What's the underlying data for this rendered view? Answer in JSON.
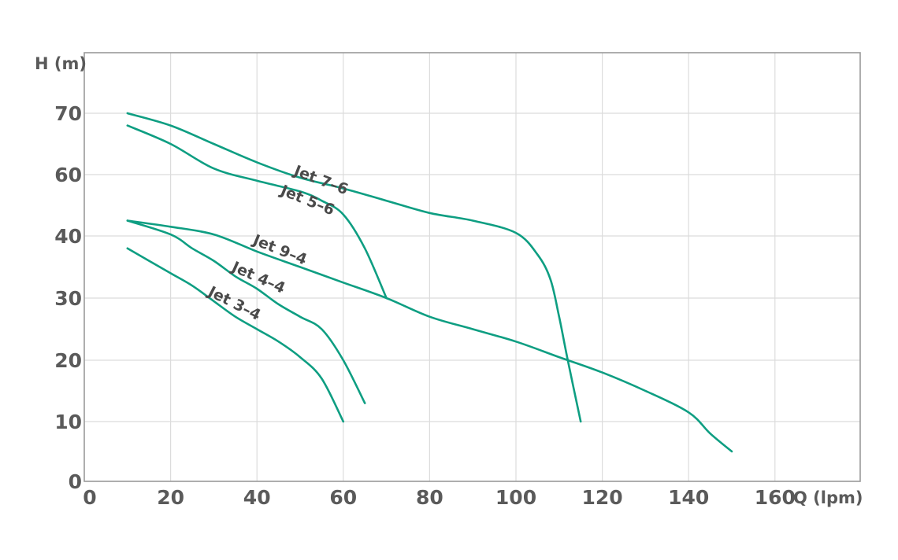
{
  "chart_data": {
    "type": "line",
    "xlabel": "Q (lpm)",
    "ylabel": "H (m)",
    "xlim": [
      0,
      180
    ],
    "ylim": [
      0,
      80
    ],
    "x_ticks": [
      0,
      20,
      40,
      60,
      80,
      100,
      120,
      140,
      160
    ],
    "y_ticks": [
      0,
      10,
      20,
      30,
      40,
      60,
      70
    ],
    "grid": true,
    "line_color": "#0e9e82",
    "series": [
      {
        "name": "Jet 7-6",
        "x": [
          10,
          20,
          30,
          40,
          50,
          60,
          70,
          80,
          90,
          100,
          105,
          108,
          110,
          112,
          115
        ],
        "y": [
          70,
          68,
          65,
          62,
          59,
          55.5,
          51.5,
          47.5,
          45,
          41,
          37,
          33,
          27,
          20,
          10
        ]
      },
      {
        "name": "Jet 5-6",
        "x": [
          10,
          20,
          30,
          40,
          50,
          55,
          60,
          65,
          70
        ],
        "y": [
          68,
          65,
          61,
          58,
          54.5,
          51.5,
          47,
          38,
          30
        ]
      },
      {
        "name": "Jet 9-4",
        "x": [
          10,
          20,
          30,
          40,
          50,
          60,
          70,
          80,
          90,
          100,
          110,
          120,
          130,
          140,
          145,
          150
        ],
        "y": [
          45,
          43,
          40.5,
          37.5,
          35,
          32.5,
          30,
          27,
          25,
          23,
          20.5,
          18,
          15,
          11.5,
          8,
          5
        ]
      },
      {
        "name": "Jet 4-4",
        "x": [
          10,
          20,
          25,
          30,
          35,
          40,
          45,
          50,
          55,
          60,
          65
        ],
        "y": [
          45,
          40.5,
          38,
          36,
          33.5,
          31.5,
          29,
          27,
          25,
          20,
          13
        ]
      },
      {
        "name": "Jet 3-4",
        "x": [
          10,
          15,
          20,
          25,
          30,
          35,
          40,
          45,
          50,
          55,
          60
        ],
        "y": [
          38,
          36,
          34,
          32,
          29.5,
          27,
          25,
          23,
          20.5,
          17,
          10
        ]
      }
    ],
    "labels": [
      "Jet 7–6",
      "Jet 5–6",
      "Jet 9–4",
      "Jet 4–4",
      "Jet 3–4"
    ]
  }
}
